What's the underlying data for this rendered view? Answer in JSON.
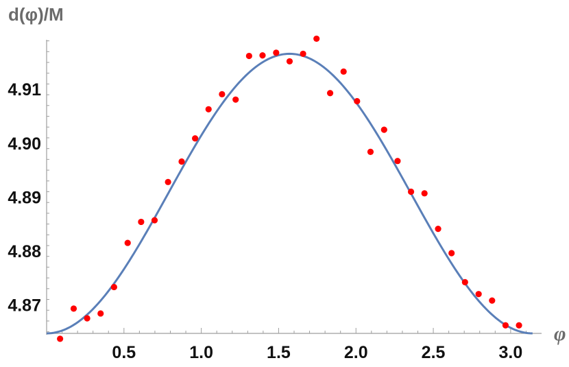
{
  "chart_data": {
    "type": "scatter",
    "xlabel": "φ",
    "ylabel": "d(φ)/M",
    "x_ticks": [
      "0.5",
      "1.0",
      "1.5",
      "2.0",
      "2.5",
      "3.0"
    ],
    "y_ticks": [
      "4.87",
      "4.88",
      "4.89",
      "4.90",
      "4.91"
    ],
    "xlim": [
      0,
      3.2
    ],
    "ylim": [
      4.8647,
      4.9192
    ],
    "axis_color": "#9e9e9e",
    "series": [
      {
        "kind": "points",
        "color": "#ff0000",
        "x": [
          0.087,
          0.175,
          0.262,
          0.349,
          0.436,
          0.524,
          0.611,
          0.698,
          0.785,
          0.873,
          0.96,
          1.047,
          1.134,
          1.222,
          1.309,
          1.396,
          1.484,
          1.571,
          1.658,
          1.745,
          1.833,
          1.92,
          2.007,
          2.094,
          2.182,
          2.269,
          2.356,
          2.443,
          2.531,
          2.618,
          2.705,
          2.793,
          2.88,
          2.967,
          3.054
        ],
        "y": [
          4.8637,
          4.8693,
          4.8675,
          4.8684,
          4.8733,
          4.8815,
          4.8854,
          4.8857,
          4.8928,
          4.8966,
          4.9009,
          4.9063,
          4.9091,
          4.9081,
          4.9162,
          4.9163,
          4.9168,
          4.9152,
          4.9166,
          4.9194,
          4.9093,
          4.9133,
          4.9078,
          4.8984,
          4.9025,
          4.8967,
          4.891,
          4.8907,
          4.8841,
          4.8796,
          4.8742,
          4.872,
          4.8708,
          4.8662,
          4.8662
        ]
      },
      {
        "kind": "curve",
        "color": "#5a7fb8",
        "formula": "4.8647 + 0.0519*sin(x)^2",
        "x_range": [
          0,
          3.1416
        ]
      }
    ]
  }
}
